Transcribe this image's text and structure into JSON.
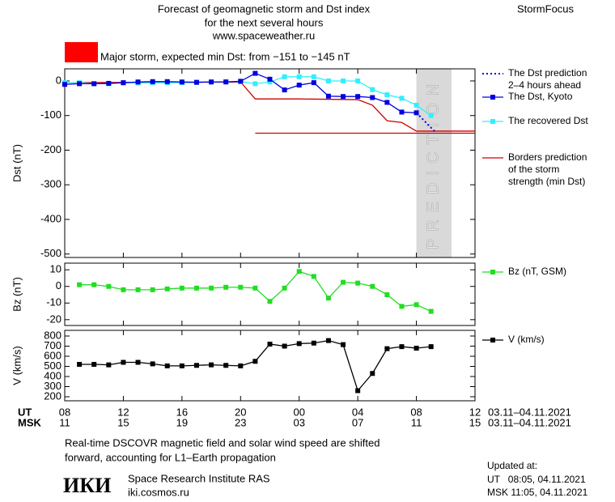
{
  "header": {
    "title": "Forecast of geomagnetic storm and Dst index",
    "subtitle": "for the next several hours",
    "site": "www.spaceweather.ru",
    "brand": "StormFocus"
  },
  "chart_data": [
    {
      "type": "line",
      "annotation": "Major storm, expected min Dst: from −151 to −145 nT",
      "annotation_color": "#ff0000",
      "ylabel": "Dst (nT)",
      "xlim": [
        8,
        36
      ],
      "ylim": [
        -510,
        35
      ],
      "yticks": [
        0,
        -100,
        -200,
        -300,
        -400,
        -500
      ],
      "prediction_band": [
        32,
        34.4
      ],
      "prediction_label": "PREDICTION",
      "series": [
        {
          "name": "Borders prediction\nof the storm\nstrength (min Dst)",
          "color": "#d00000",
          "marker": "none",
          "x": [
            8,
            20,
            21,
            24,
            28,
            29,
            30,
            31,
            32,
            36
          ],
          "values": [
            -5,
            -3,
            -52,
            -52,
            -54,
            -70,
            -115,
            -120,
            -145,
            -145
          ]
        },
        {
          "color": "#d00000",
          "marker": "none",
          "x": [
            21,
            36
          ],
          "values": [
            -151,
            -151
          ]
        },
        {
          "name": "The recovered Dst",
          "color": "#33eeff",
          "marker": "square",
          "x": [
            8,
            9,
            10,
            11,
            12,
            13,
            14,
            15,
            16,
            17,
            18,
            19,
            20,
            21,
            22,
            23,
            24,
            25,
            26,
            27,
            28,
            29,
            30,
            31,
            32,
            33
          ],
          "values": [
            -5,
            -5,
            -8,
            -8,
            -6,
            -6,
            -5,
            -5,
            -5,
            -4,
            -3,
            -2,
            -2,
            -8,
            -3,
            12,
            12,
            12,
            0,
            0,
            0,
            -25,
            -40,
            -50,
            -70,
            -100
          ]
        },
        {
          "name": "The Dst, Kyoto",
          "color": "#0000dd",
          "marker": "square",
          "x": [
            8,
            9,
            10,
            11,
            12,
            13,
            14,
            15,
            16,
            17,
            18,
            19,
            20,
            21,
            22,
            23,
            24,
            25,
            26,
            27,
            28,
            29,
            30,
            31,
            32
          ],
          "values": [
            -10,
            -8,
            -8,
            -7,
            -5,
            -3,
            -2,
            -2,
            -3,
            -4,
            -3,
            -3,
            -1,
            22,
            5,
            -26,
            -12,
            -5,
            -44,
            -45,
            -45,
            -48,
            -62,
            -90,
            -92
          ]
        },
        {
          "name": "The Dst prediction\n2–4 hours ahead",
          "color": "#0000dd",
          "marker": "none",
          "dash": "dotted",
          "x": [
            32,
            33.3
          ],
          "values": [
            -92,
            -148
          ]
        }
      ]
    },
    {
      "type": "line",
      "ylabel": "Bz (nT)",
      "xlim": [
        8,
        36
      ],
      "ylim": [
        -23.5,
        14
      ],
      "yticks": [
        10,
        0,
        -10,
        -20
      ],
      "series": [
        {
          "name": "Bz (nT, GSM)",
          "color": "#22dd22",
          "marker": "square",
          "x": [
            9,
            10,
            11,
            12,
            13,
            14,
            15,
            16,
            17,
            18,
            19,
            20,
            21,
            22,
            23,
            24,
            25,
            26,
            27,
            28,
            29,
            30,
            31,
            32,
            33
          ],
          "values": [
            1,
            1,
            0,
            -2,
            -2,
            -2,
            -1.5,
            -1,
            -1,
            -1,
            -0.5,
            -0.5,
            -1,
            -9,
            -1,
            9,
            6,
            -7,
            2.5,
            2,
            0,
            -5,
            -12,
            -11,
            -15
          ]
        }
      ]
    },
    {
      "type": "line",
      "ylabel": "V (km/s)",
      "xlim": [
        8,
        36
      ],
      "ylim": [
        160,
        856
      ],
      "yticks": [
        800,
        700,
        600,
        500,
        400,
        300,
        200
      ],
      "xticks_ut_label": "UT",
      "xticks_msk_label": "MSK",
      "xticks": [
        {
          "value": 8,
          "label": "08"
        },
        12,
        16,
        20,
        {
          "value": 24,
          "label": "00"
        },
        {
          "value": 28,
          "label": "04"
        },
        {
          "value": 32,
          "label": "08"
        },
        {
          "value": 36,
          "label": "12"
        }
      ],
      "xticks_msk": [
        {
          "value": 8,
          "label": "11"
        },
        {
          "value": 12,
          "label": "15"
        },
        {
          "value": 16,
          "label": "19"
        },
        {
          "value": 20,
          "label": "23"
        },
        {
          "value": 24,
          "label": "03"
        },
        {
          "value": 28,
          "label": "07"
        },
        {
          "value": 32,
          "label": "11"
        },
        {
          "value": 36,
          "label": "15"
        }
      ],
      "date_range_ut": "03.11–04.11.2021",
      "date_range_msk": "03.11–04.11.2021",
      "series": [
        {
          "name": "V (km/s)",
          "color": "#000000",
          "marker": "square",
          "x": [
            9,
            10,
            11,
            12,
            13,
            14,
            15,
            16,
            17,
            18,
            19,
            20,
            21,
            22,
            23,
            24,
            25,
            26,
            27,
            28,
            29,
            30,
            31,
            32,
            33
          ],
          "values": [
            520,
            520,
            515,
            540,
            540,
            525,
            505,
            505,
            510,
            515,
            510,
            505,
            550,
            720,
            700,
            725,
            730,
            755,
            715,
            260,
            430,
            675,
            695,
            680,
            695
          ]
        }
      ]
    }
  ],
  "footer": {
    "note_line1": "Real-time DSCOVR magnetic field and solar wind speed are shifted",
    "note_line2": "forward, accounting for L1–Earth propagation",
    "logo": "ИКИ",
    "institute": "Space Research Institute RAS",
    "url": "iki.cosmos.ru",
    "updated_label": "Updated at:",
    "updated_ut": "UT   08:05, 04.11.2021",
    "updated_msk": "MSK 11:05, 04.11.2021"
  }
}
